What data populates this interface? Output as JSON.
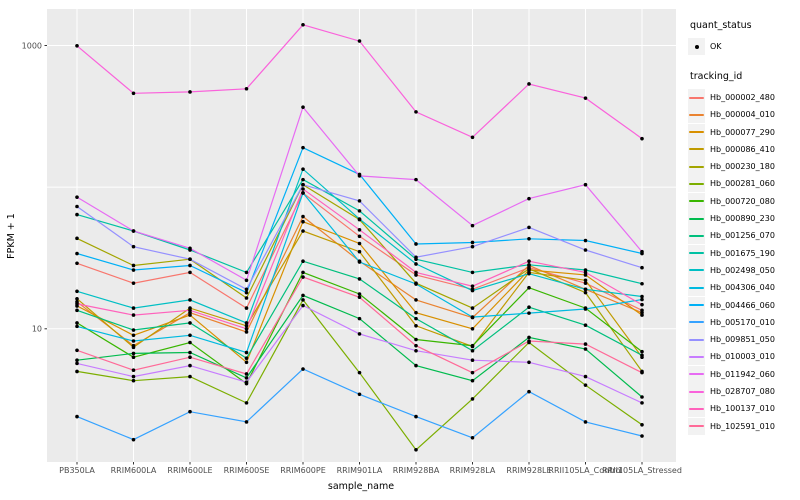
{
  "legend": {
    "quant_status_title": "quant_status",
    "quant_status_value": "OK",
    "tracking_id_title": "tracking_id"
  },
  "axes": {
    "x_title": "sample_name",
    "y_title": "FPKM + 1",
    "y_tick_labels": [
      "1000",
      "10"
    ],
    "y_tick_values": [
      1000,
      10
    ]
  },
  "chart_data": {
    "type": "line",
    "title": "",
    "xlabel": "sample_name",
    "ylabel": "FPKM + 1",
    "y_scale": "log10",
    "y_labeled_breaks": [
      1000,
      10
    ],
    "y_gridline_values": [
      1000,
      100,
      10
    ],
    "legend_position": "right",
    "panel_bg": "#EBEBEB",
    "grid_color": "#FFFFFF",
    "point_color": "#000000",
    "axis_text_color": "#4D4D4D",
    "categories": [
      "PB350LA",
      "RRIM600LA",
      "RRIM600LE",
      "RRIM600SE",
      "RRIM600PE",
      "RRIM901LA",
      "RRIM928BA",
      "RRIM928LA",
      "RRIM928LE",
      "RRII105LA_Control",
      "RRII105LA_Stressed"
    ],
    "series": [
      {
        "name": "Hb_000002_480",
        "color": "#F8766D",
        "values": [
          29,
          21,
          25,
          14,
          91,
          45,
          24,
          19,
          27,
          21,
          13.5
        ]
      },
      {
        "name": "Hb_000004_010",
        "color": "#EA8331",
        "values": [
          15.5,
          7.6,
          13,
          9.5,
          62,
          30,
          16,
          12,
          28,
          19,
          13
        ]
      },
      {
        "name": "Hb_000077_290",
        "color": "#D89000",
        "values": [
          14.5,
          9,
          12.5,
          5.8,
          57,
          40,
          13,
          10,
          26,
          24,
          12.5
        ]
      },
      {
        "name": "Hb_000086_410",
        "color": "#C09B00",
        "values": [
          16.3,
          7.4,
          14,
          10.5,
          49,
          35,
          10.5,
          7.5,
          25,
          22,
          6.3
        ]
      },
      {
        "name": "Hb_000230_180",
        "color": "#A3A500",
        "values": [
          43.5,
          28,
          31,
          16.5,
          104,
          59,
          21,
          14,
          26.5,
          18,
          5
        ]
      },
      {
        "name": "Hb_000281_060",
        "color": "#7CAE00",
        "values": [
          5,
          4.3,
          4.6,
          3,
          16,
          4.9,
          1.4,
          3.2,
          8,
          4,
          2.1
        ]
      },
      {
        "name": "Hb_000720_080",
        "color": "#39B600",
        "values": [
          11,
          6.3,
          8,
          4.1,
          25,
          17.6,
          8.4,
          7.6,
          19.5,
          14,
          6.9
        ]
      },
      {
        "name": "Hb_000890_230",
        "color": "#00BB4E",
        "values": [
          6,
          6.7,
          6.8,
          4.5,
          17.2,
          11.8,
          5.5,
          4.3,
          8.7,
          7.2,
          3.3
        ]
      },
      {
        "name": "Hb_001256_070",
        "color": "#00BF7D",
        "values": [
          13.5,
          9.8,
          11,
          6.2,
          30,
          22.5,
          11.8,
          7,
          14.2,
          10.6,
          6.5
        ]
      },
      {
        "name": "Hb_001675_190",
        "color": "#00C1A3",
        "values": [
          64,
          49,
          36,
          25,
          113,
          68,
          31,
          25,
          28.3,
          26,
          20.8
        ]
      },
      {
        "name": "Hb_002498_050",
        "color": "#00BFC4",
        "values": [
          18.4,
          14,
          16,
          11,
          134,
          59.5,
          28.7,
          18.6,
          24.5,
          19,
          16.9
        ]
      },
      {
        "name": "Hb_004306_040",
        "color": "#00BAE0",
        "values": [
          10.4,
          8.2,
          9,
          6.8,
          91,
          29.6,
          20.7,
          12.1,
          12.9,
          13.8,
          16.1
        ]
      },
      {
        "name": "Hb_004466_060",
        "color": "#00B0F6",
        "values": [
          34,
          26,
          28,
          18,
          190,
          123,
          39.7,
          40.7,
          43.2,
          42,
          34
        ]
      },
      {
        "name": "Hb_005170_010",
        "color": "#35A2FF",
        "values": [
          2.4,
          1.65,
          2.6,
          2.2,
          5.2,
          3.45,
          2.4,
          1.7,
          3.6,
          2.2,
          1.75
        ]
      },
      {
        "name": "Hb_009851_050",
        "color": "#9590FF",
        "values": [
          73,
          38,
          31,
          19,
          104,
          80,
          32,
          38,
          52,
          36,
          27
        ]
      },
      {
        "name": "Hb_010003_010",
        "color": "#C77CFF",
        "values": [
          5.7,
          4.6,
          5.5,
          4.2,
          14.6,
          9.2,
          7,
          6,
          5.8,
          4.6,
          3
        ]
      },
      {
        "name": "Hb_011942_060",
        "color": "#E76BF3",
        "values": [
          85,
          49,
          37,
          22,
          367,
          120,
          113,
          53.5,
          83,
          104,
          35
        ]
      },
      {
        "name": "Hb_028707_080",
        "color": "#FA62DB",
        "values": [
          995,
          460,
          470,
          495,
          1400,
          1075,
          340,
          225,
          535,
          425,
          220
        ]
      },
      {
        "name": "Hb_100137_010",
        "color": "#FF62BC",
        "values": [
          15,
          12.5,
          13.5,
          10,
          97,
          50,
          25,
          20,
          30,
          25,
          14.8
        ]
      },
      {
        "name": "Hb_102591_010",
        "color": "#FF6A98",
        "values": [
          7.05,
          5.1,
          6.3,
          4.8,
          23.2,
          16.7,
          7.6,
          4.9,
          8.2,
          7.8,
          4.9
        ]
      }
    ]
  }
}
